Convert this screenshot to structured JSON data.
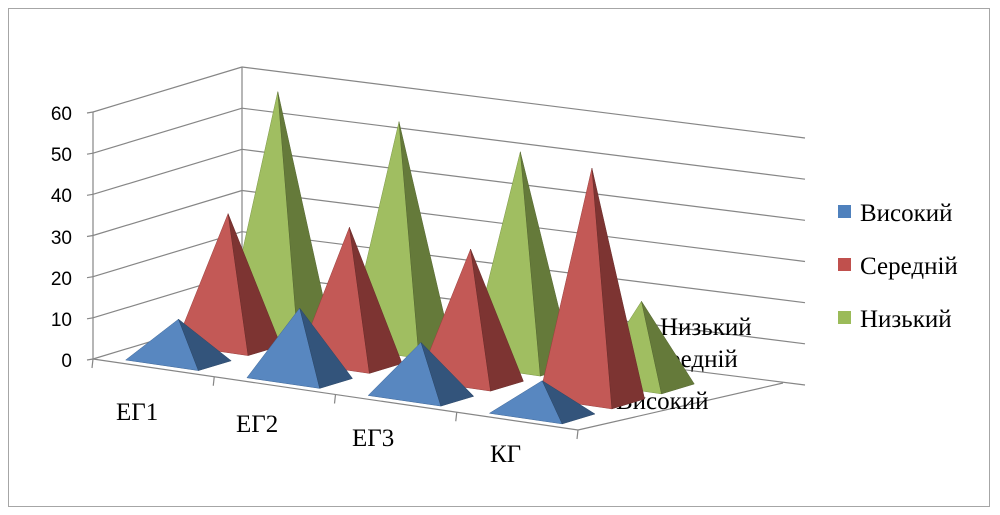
{
  "chart_data": {
    "type": "bar",
    "style": "3d-pyramid",
    "categories": [
      "ЕГ1",
      "ЕГ2",
      "ЕГ3",
      "КГ"
    ],
    "depth_categories": [
      "Високий",
      "Середній",
      "Низький"
    ],
    "series": [
      {
        "name": "Високий",
        "values": [
          10,
          17,
          13,
          8
        ],
        "color": "#4f81bd"
      },
      {
        "name": "Середній",
        "values": [
          32,
          33,
          32,
          56
        ],
        "color": "#c0504d"
      },
      {
        "name": "Низький",
        "values": [
          58,
          55,
          52,
          20
        ],
        "color": "#9bbb59"
      }
    ],
    "ylim": [
      0,
      60
    ],
    "yticks": [
      "0",
      "10",
      "20",
      "30",
      "40",
      "50",
      "60"
    ],
    "grid": true,
    "legend": "right"
  }
}
